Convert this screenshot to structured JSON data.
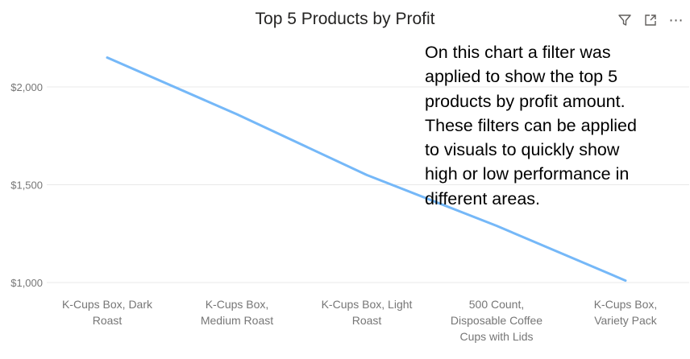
{
  "toolbar": {
    "filter_icon": "filter-icon",
    "focus_icon": "focus-mode-icon",
    "more_label": "⋯"
  },
  "colors": {
    "line": "#75b8f8",
    "grid": "#e8e8e8",
    "axis_text": "#767676",
    "title": "#252423"
  },
  "chart_data": {
    "type": "line",
    "title": "Top 5 Products by Profit",
    "xlabel": "",
    "ylabel": "",
    "categories": [
      "K-Cups Box, Dark Roast",
      "K-Cups Box, Medium Roast",
      "K-Cups Box, Light Roast",
      "500 Count, Disposable Coffee Cups with Lids",
      "K-Cups Box, Variety Pack"
    ],
    "category_lines": [
      [
        "K-Cups Box, Dark",
        "Roast"
      ],
      [
        "K-Cups Box,",
        "Medium Roast"
      ],
      [
        "K-Cups Box, Light",
        "Roast"
      ],
      [
        "500 Count,",
        "Disposable Coffee",
        "Cups with Lids"
      ],
      [
        "K-Cups Box,",
        "Variety Pack"
      ]
    ],
    "values": [
      2150,
      1860,
      1550,
      1290,
      1010
    ],
    "ylim": [
      1000,
      2200
    ],
    "yticks": [
      1000,
      1500,
      2000
    ],
    "ytick_labels": [
      "$1,000",
      "$1,500",
      "$2,000"
    ],
    "grid": true
  },
  "annotation": {
    "lines": [
      "On this chart a filter was",
      "applied to show the top 5",
      "products by profit amount.",
      "These filters can be applied",
      "to visuals to quickly show",
      "high or low performance in",
      "different areas."
    ]
  }
}
